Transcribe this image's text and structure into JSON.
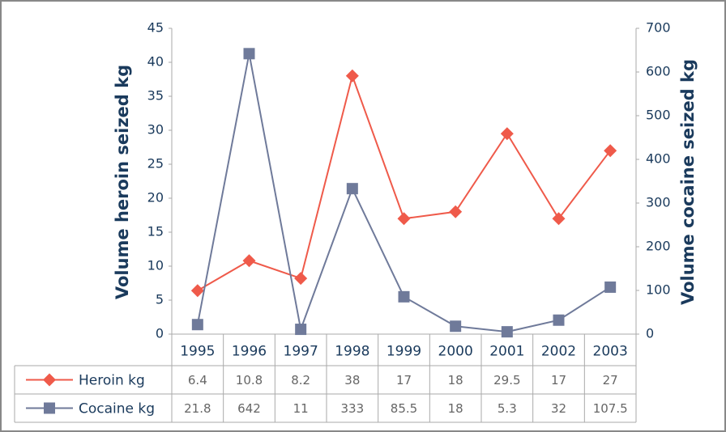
{
  "chart_data": {
    "type": "line",
    "categories": [
      "1995",
      "1996",
      "1997",
      "1998",
      "1999",
      "2000",
      "2001",
      "2002",
      "2003"
    ],
    "series": [
      {
        "name": "Heroin kg",
        "color": "#ef5a4a",
        "marker": "diamond",
        "values": [
          6.4,
          10.8,
          8.2,
          38,
          17,
          18,
          29.5,
          17,
          27
        ]
      },
      {
        "name": "Cocaine kg",
        "color": "#6f7a9a",
        "marker": "square",
        "axis": "y2",
        "values": [
          21.8,
          642,
          11,
          333,
          85.5,
          18,
          5.3,
          32,
          107.5
        ]
      }
    ],
    "ylabel": "Volume heroin seized kg",
    "y2label": "Volume cocaine seized kg",
    "ylim": [
      0,
      45
    ],
    "yticks": [
      0,
      5,
      10,
      15,
      20,
      25,
      30,
      35,
      40,
      45
    ],
    "y2lim": [
      0,
      700
    ],
    "y2ticks": [
      0,
      100,
      200,
      300,
      400,
      500,
      600,
      700
    ],
    "grid": false
  }
}
